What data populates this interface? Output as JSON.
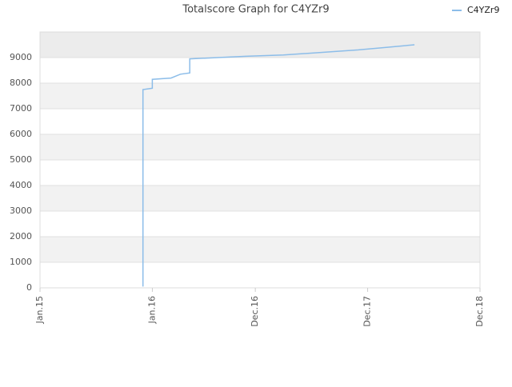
{
  "chart_data": {
    "type": "line",
    "title": "Totalscore Graph for C4YZr9",
    "x": [
      "2015-12",
      "2015-12",
      "2016-01",
      "2016-01",
      "2016-03",
      "2016-04",
      "2016-05",
      "2016-05",
      "2016-08",
      "2016-11",
      "2017-03",
      "2017-07",
      "2017-11",
      "2018-02",
      "2018-05"
    ],
    "series": [
      {
        "name": "C4YZr9",
        "color": "#8cbde9",
        "values": [
          50,
          7750,
          7800,
          8150,
          8200,
          8350,
          8400,
          8950,
          9000,
          9050,
          9100,
          9200,
          9300,
          9400,
          9500
        ]
      }
    ],
    "xlim": [
      "2015-01",
      "2018-12"
    ],
    "xticks": [
      {
        "value": "2015-01",
        "label": "Jan.15"
      },
      {
        "value": "2016-01",
        "label": "Jan.16"
      },
      {
        "value": "2016-12",
        "label": "Dec.16"
      },
      {
        "value": "2017-12",
        "label": "Dec.17"
      },
      {
        "value": "2018-12",
        "label": "Dec.18"
      }
    ],
    "ylim": [
      0,
      10000
    ],
    "yticks": [
      0,
      1000,
      2000,
      3000,
      4000,
      5000,
      6000,
      7000,
      8000,
      9000
    ],
    "grid": true,
    "legend": "top-right"
  }
}
